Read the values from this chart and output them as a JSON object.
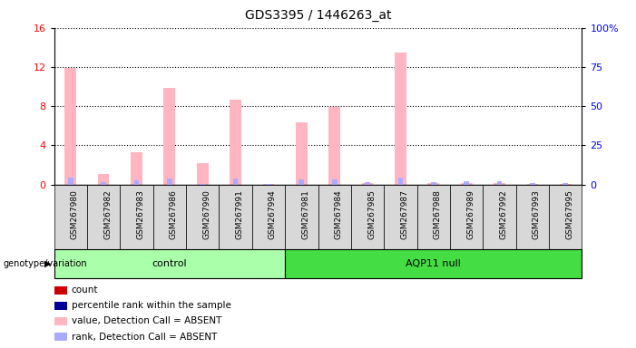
{
  "title": "GDS3395 / 1446263_at",
  "samples": [
    "GSM267980",
    "GSM267982",
    "GSM267983",
    "GSM267986",
    "GSM267990",
    "GSM267991",
    "GSM267994",
    "GSM267981",
    "GSM267984",
    "GSM267985",
    "GSM267987",
    "GSM267988",
    "GSM267989",
    "GSM267992",
    "GSM267993",
    "GSM267995"
  ],
  "groups": [
    "control",
    "control",
    "control",
    "control",
    "control",
    "control",
    "control",
    "AQP11 null",
    "AQP11 null",
    "AQP11 null",
    "AQP11 null",
    "AQP11 null",
    "AQP11 null",
    "AQP11 null",
    "AQP11 null",
    "AQP11 null"
  ],
  "value_absent": [
    11.9,
    1.1,
    3.3,
    9.9,
    2.2,
    8.7,
    0.05,
    6.3,
    7.9,
    0.15,
    13.5,
    0.1,
    0.1,
    0.1,
    0.05,
    0.05
  ],
  "rank_absent": [
    4.3,
    1.7,
    2.7,
    3.7,
    0.5,
    3.7,
    0.5,
    3.1,
    3.1,
    1.4,
    4.5,
    1.5,
    1.8,
    1.9,
    0.9,
    0.6
  ],
  "left_ylim": [
    0,
    16
  ],
  "right_ylim": [
    0,
    100
  ],
  "left_yticks": [
    0,
    4,
    8,
    12,
    16
  ],
  "right_yticks": [
    0,
    25,
    50,
    75,
    100
  ],
  "right_yticklabels": [
    "0",
    "25",
    "50",
    "75",
    "100%"
  ],
  "bar_width": 0.35,
  "plot_bg_color": "#ffffff",
  "xticklabel_bg": "#d8d8d8",
  "group_colors": {
    "control": "#aaffaa",
    "AQP11 null": "#44dd44"
  },
  "color_value_absent": "#ffb6c1",
  "color_rank_absent": "#aaaaff",
  "color_count": "#cc0000",
  "color_pct": "#000099",
  "legend_items": [
    {
      "color": "#cc0000",
      "label": "count"
    },
    {
      "color": "#000099",
      "label": "percentile rank within the sample"
    },
    {
      "color": "#ffb6c1",
      "label": "value, Detection Call = ABSENT"
    },
    {
      "color": "#aaaaff",
      "label": "rank, Detection Call = ABSENT"
    }
  ],
  "group_label": "genotype/variation"
}
